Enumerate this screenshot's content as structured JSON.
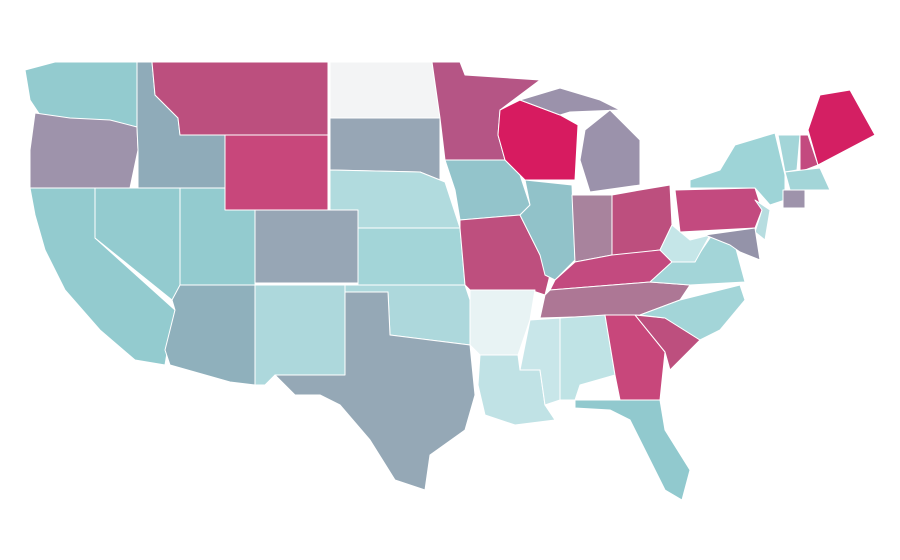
{
  "map": {
    "regions": [
      {
        "color": "#93cbcf"
      },
      {
        "color": "#9e93ab"
      },
      {
        "color": "#93cbcf"
      },
      {
        "color": "#93cbcf"
      },
      {
        "color": "#8fabb9"
      },
      {
        "color": "#bc4f7e"
      },
      {
        "color": "#c8477b"
      },
      {
        "color": "#93cbcf"
      },
      {
        "color": "#97a6b5"
      },
      {
        "color": "#8fb0bc"
      },
      {
        "color": "#add8dc"
      },
      {
        "color": "#f3f4f5"
      },
      {
        "color": "#97a6b5"
      },
      {
        "color": "#b1dbde"
      },
      {
        "color": "#a3d5d8"
      },
      {
        "color": "#add8dc"
      },
      {
        "color": "#95a8b6"
      },
      {
        "color": "#b55585"
      },
      {
        "color": "#93c4cb"
      },
      {
        "color": "#be4f7e"
      },
      {
        "color": "#e8f3f4"
      },
      {
        "color": "#c0e2e5"
      },
      {
        "color": "#d71b60"
      },
      {
        "color": "#91c2c9"
      },
      {
        "color": "#9b92ab"
      },
      {
        "color": "#9b92ab"
      },
      {
        "color": "#a8839d"
      },
      {
        "color": "#bd4f7e"
      },
      {
        "color": "#c34a7f"
      },
      {
        "color": "#ad7795"
      },
      {
        "color": "#c8e6e9"
      },
      {
        "color": "#bfe3e5"
      },
      {
        "color": "#c8477b"
      },
      {
        "color": "#91c9ce"
      },
      {
        "color": "#bd4f7e"
      },
      {
        "color": "#a3d5d8"
      },
      {
        "color": "#a3d5d8"
      },
      {
        "color": "#c5e6e8"
      },
      {
        "color": "#c34a7f"
      },
      {
        "color": "#9ed4d7"
      },
      {
        "color": "#b7dde0"
      },
      {
        "color": "#9493a9"
      },
      {
        "color": "#a3d5d8"
      },
      {
        "color": "#c34a7f"
      },
      {
        "color": "#d41f63"
      },
      {
        "color": "#a3d5d8"
      },
      {
        "color": "#9e93ab"
      }
    ]
  }
}
